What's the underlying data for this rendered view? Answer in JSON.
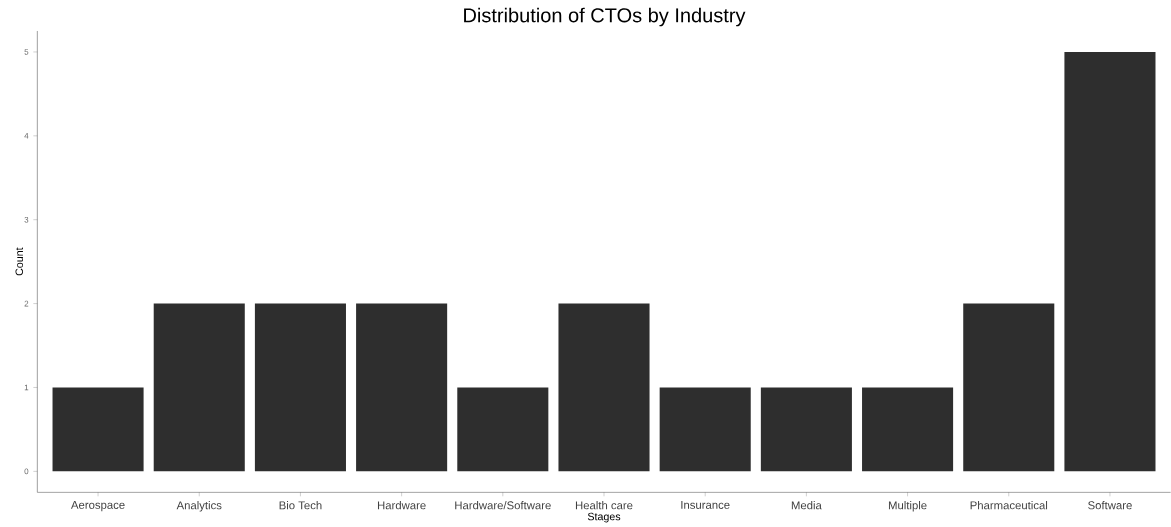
{
  "chart_data": {
    "type": "bar",
    "title": "Distribution of CTOs by Industry",
    "xlabel": "Stages",
    "ylabel": "Count",
    "categories": [
      "Aerospace",
      "Analytics",
      "Bio Tech",
      "Hardware",
      "Hardware/Software",
      "Health care",
      "Insurance",
      "Media",
      "Multiple",
      "Pharmaceutical",
      "Software"
    ],
    "values": [
      1,
      2,
      2,
      2,
      1,
      2,
      1,
      1,
      1,
      2,
      5
    ],
    "color": "#2e2e2e",
    "ylim": [
      -0.25,
      5.25
    ],
    "yticks": [
      0,
      1,
      2,
      3,
      4,
      5
    ]
  }
}
